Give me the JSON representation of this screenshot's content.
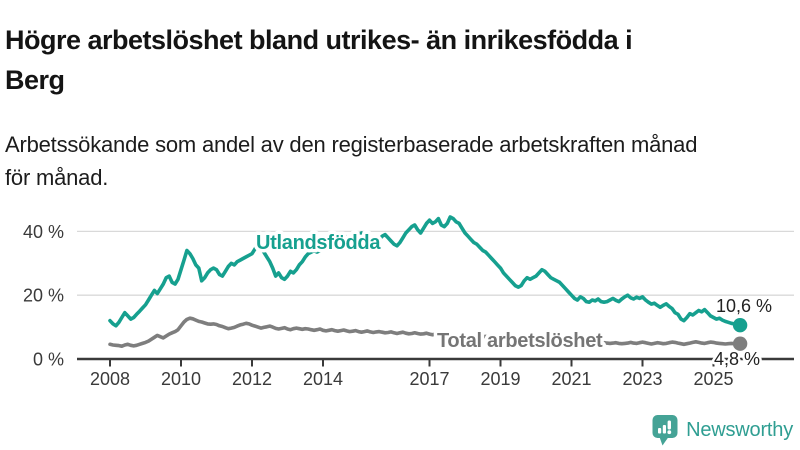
{
  "header": {
    "title_lines": [
      "Högre arbetslöshet bland utrikes- än inrikesfödda i",
      "Berg"
    ],
    "subtitle_lines": [
      "Arbetssökande som andel av den registerbaserade arbetskraften månad",
      "för månad."
    ]
  },
  "footer": {
    "brand": "Newsworthy",
    "logo_icon": "bar-chart-speech-bubble-icon"
  },
  "colors": {
    "accent_teal": "#16a08f",
    "series_gray": "#7e7e7e",
    "logo_teal": "#45a396",
    "grid_gray": "#d9d9d9",
    "axis_dark": "#3a3a3a"
  },
  "chart_data": {
    "type": "line",
    "title": "Högre arbetslöshet bland utrikes- än inrikesfödda i Berg",
    "subtitle": "Arbetssökande som andel av den registerbaserade arbetskraften månad för månad.",
    "unit": "%",
    "frequency": "monthly",
    "period_start": "2008-01",
    "period_end": "2025-10",
    "ylim": [
      0,
      46
    ],
    "grid": "horizontal",
    "legend_position": "inline-labels",
    "y_ticks": [
      {
        "value": 0,
        "label": "0 %"
      },
      {
        "value": 20,
        "label": "20 %"
      },
      {
        "value": 40,
        "label": "40 %"
      }
    ],
    "x_ticks": [
      {
        "year": 2008,
        "label": "2008"
      },
      {
        "year": 2010,
        "label": "2010"
      },
      {
        "year": 2012,
        "label": "2012"
      },
      {
        "year": 2014,
        "label": "2014"
      },
      {
        "year": 2017,
        "label": "2017"
      },
      {
        "year": 2019,
        "label": "2019"
      },
      {
        "year": 2021,
        "label": "2021"
      },
      {
        "year": 2023,
        "label": "2023"
      },
      {
        "year": 2025,
        "label": "2025"
      }
    ],
    "series": [
      {
        "name": "Utlandsfödda",
        "color": "#16a08f",
        "end_label": "10,6 %",
        "last_value": 10.6,
        "values": [
          12.0,
          11.0,
          10.4,
          11.5,
          13.0,
          14.5,
          13.5,
          12.5,
          13.0,
          14.0,
          15.0,
          16.0,
          17.0,
          18.5,
          20.0,
          21.5,
          20.5,
          22.0,
          23.5,
          25.5,
          26.0,
          24.0,
          23.5,
          25.0,
          28.0,
          31.0,
          34.0,
          33.0,
          31.5,
          29.5,
          28.5,
          24.5,
          25.5,
          27.0,
          28.0,
          28.5,
          28.0,
          26.5,
          26.0,
          27.5,
          29.0,
          30.0,
          29.5,
          30.5,
          31.0,
          31.5,
          32.0,
          32.5,
          33.0,
          34.5,
          36.0,
          35.0,
          33.5,
          32.0,
          30.5,
          28.5,
          26.0,
          27.0,
          25.5,
          25.0,
          26.0,
          27.5,
          27.0,
          28.0,
          29.5,
          30.5,
          32.0,
          33.0,
          33.5,
          34.0,
          33.5,
          34.0,
          34.5,
          36.0,
          36.5,
          37.0,
          36.0,
          37.5,
          38.5,
          39.0,
          38.0,
          37.0,
          37.5,
          38.0,
          38.5,
          39.5,
          38.5,
          37.5,
          38.0,
          37.0,
          36.5,
          37.5,
          38.5,
          39.0,
          38.0,
          37.0,
          36.0,
          35.5,
          36.5,
          38.0,
          39.5,
          40.5,
          41.5,
          42.0,
          40.5,
          39.5,
          41.0,
          42.5,
          43.5,
          42.5,
          43.0,
          44.0,
          42.0,
          41.5,
          42.5,
          44.5,
          44.0,
          43.0,
          42.5,
          41.0,
          39.5,
          38.5,
          37.5,
          36.5,
          36.0,
          35.0,
          34.0,
          33.5,
          32.5,
          31.5,
          30.5,
          29.5,
          28.5,
          27.0,
          26.0,
          25.0,
          24.0,
          23.0,
          22.5,
          23.0,
          24.5,
          25.5,
          25.0,
          25.5,
          26.0,
          27.0,
          28.0,
          27.5,
          26.5,
          25.5,
          25.0,
          24.5,
          24.0,
          23.0,
          22.0,
          21.0,
          20.0,
          19.0,
          18.5,
          19.5,
          19.0,
          18.0,
          17.8,
          18.5,
          18.2,
          18.8,
          18.0,
          17.8,
          18.0,
          18.5,
          19.0,
          18.4,
          18.0,
          18.8,
          19.5,
          20.0,
          19.2,
          18.8,
          19.4,
          19.0,
          19.5,
          18.5,
          17.8,
          17.2,
          17.5,
          16.8,
          16.2,
          16.8,
          17.3,
          16.5,
          15.8,
          14.5,
          14.0,
          12.5,
          12.0,
          13.0,
          14.2,
          13.8,
          14.5,
          15.2,
          14.8,
          15.5,
          14.5,
          13.5,
          13.0,
          12.5,
          12.8,
          12.2,
          11.8,
          11.5,
          11.2,
          11.0,
          10.8,
          10.6
        ]
      },
      {
        "name": "Total arbetslöshet",
        "color": "#7e7e7e",
        "end_label": "4,8 %",
        "last_value": 4.8,
        "values": [
          4.6,
          4.4,
          4.3,
          4.2,
          4.0,
          4.4,
          4.6,
          4.3,
          4.1,
          4.3,
          4.6,
          4.9,
          5.2,
          5.6,
          6.2,
          6.8,
          7.4,
          7.0,
          6.6,
          7.2,
          7.8,
          8.2,
          8.6,
          9.2,
          10.4,
          11.6,
          12.4,
          12.8,
          12.6,
          12.2,
          11.8,
          11.6,
          11.3,
          11.0,
          10.9,
          11.0,
          10.8,
          10.4,
          10.2,
          9.8,
          9.5,
          9.7,
          9.9,
          10.3,
          10.7,
          10.9,
          11.2,
          11.0,
          10.6,
          10.3,
          10.0,
          9.7,
          9.9,
          10.1,
          10.3,
          10.0,
          9.6,
          9.4,
          9.6,
          9.8,
          9.4,
          9.2,
          9.5,
          9.7,
          9.5,
          9.3,
          9.5,
          9.4,
          9.2,
          9.0,
          9.2,
          9.4,
          9.0,
          8.8,
          9.0,
          9.2,
          8.9,
          8.7,
          8.9,
          9.1,
          8.8,
          8.6,
          8.7,
          8.9,
          8.6,
          8.4,
          8.6,
          8.8,
          8.5,
          8.3,
          8.5,
          8.6,
          8.4,
          8.2,
          8.3,
          8.5,
          8.2,
          8.0,
          8.2,
          8.4,
          8.1,
          7.9,
          8.0,
          8.2,
          8.0,
          7.8,
          7.9,
          8.1,
          7.8,
          7.6,
          7.8,
          7.9,
          7.7,
          7.5,
          7.6,
          7.8,
          7.6,
          7.4,
          7.5,
          7.6,
          7.3,
          7.1,
          7.2,
          7.3,
          7.1,
          6.9,
          7.0,
          7.1,
          6.9,
          6.7,
          6.8,
          6.9,
          6.6,
          6.4,
          6.5,
          6.6,
          6.4,
          6.2,
          6.3,
          6.4,
          6.2,
          6.1,
          6.2,
          6.3,
          6.2,
          6.3,
          6.6,
          6.9,
          7.1,
          6.9,
          6.7,
          6.6,
          6.4,
          6.2,
          6.0,
          5.9,
          5.8,
          5.7,
          5.6,
          5.5,
          5.4,
          5.3,
          5.2,
          5.3,
          5.2,
          5.1,
          5.0,
          5.1,
          5.0,
          4.9,
          5.0,
          5.1,
          4.9,
          4.8,
          4.9,
          5.0,
          5.2,
          5.0,
          4.9,
          5.1,
          5.3,
          5.1,
          4.9,
          4.7,
          4.9,
          5.1,
          5.0,
          4.8,
          4.9,
          5.1,
          5.3,
          5.2,
          5.0,
          4.8,
          4.6,
          4.8,
          5.0,
          5.2,
          5.4,
          5.2,
          5.0,
          4.9,
          5.1,
          5.3,
          5.2,
          5.0,
          4.9,
          4.8,
          4.7,
          4.8,
          4.9,
          4.8,
          4.7,
          4.8
        ]
      }
    ]
  }
}
